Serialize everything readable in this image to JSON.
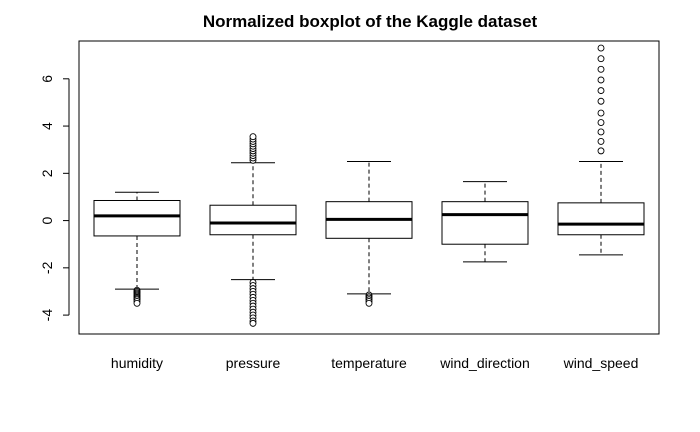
{
  "chart_data": {
    "type": "boxplot",
    "title": "Normalized boxplot of the Kaggle dataset",
    "xlabel": "",
    "ylabel": "",
    "ylim": [
      -4.8,
      7.6
    ],
    "yticks": [
      -4,
      -2,
      0,
      2,
      4,
      6
    ],
    "ytick_labels": [
      "-4",
      "-2",
      "0",
      "2",
      "4",
      "6"
    ],
    "grid": false,
    "categories": [
      "humidity",
      "pressure",
      "temperature",
      "wind_direction",
      "wind_speed"
    ],
    "boxes": [
      {
        "name": "humidity",
        "whisker_low": -2.9,
        "q1": -0.65,
        "median": 0.2,
        "q3": 0.85,
        "whisker_high": 1.2,
        "outliers": [
          -2.95,
          -3.0,
          -3.05,
          -3.1,
          -3.15,
          -3.2,
          -3.25,
          -3.3,
          -3.35,
          -3.42,
          -3.5
        ]
      },
      {
        "name": "pressure",
        "whisker_low": -2.5,
        "q1": -0.6,
        "median": -0.1,
        "q3": 0.65,
        "whisker_high": 2.45,
        "outliers": [
          2.55,
          2.65,
          2.75,
          2.85,
          2.95,
          3.05,
          3.15,
          3.25,
          3.35,
          3.45,
          3.55,
          -2.62,
          -2.75,
          -2.88,
          -3.0,
          -3.12,
          -3.25,
          -3.38,
          -3.5,
          -3.62,
          -3.75,
          -3.88,
          -4.0,
          -4.12,
          -4.25,
          -4.35
        ]
      },
      {
        "name": "temperature",
        "whisker_low": -3.1,
        "q1": -0.75,
        "median": 0.05,
        "q3": 0.8,
        "whisker_high": 2.5,
        "outliers": [
          -3.15,
          -3.22,
          -3.28,
          -3.35,
          -3.42,
          -3.5
        ]
      },
      {
        "name": "wind_direction",
        "whisker_low": -1.75,
        "q1": -1.0,
        "median": 0.25,
        "q3": 0.8,
        "whisker_high": 1.65,
        "outliers": []
      },
      {
        "name": "wind_speed",
        "whisker_low": -1.45,
        "q1": -0.6,
        "median": -0.15,
        "q3": 0.75,
        "whisker_high": 2.5,
        "outliers": [
          2.95,
          3.35,
          3.75,
          4.15,
          4.55,
          5.05,
          5.5,
          5.95,
          6.4,
          6.85,
          7.3
        ]
      }
    ]
  }
}
